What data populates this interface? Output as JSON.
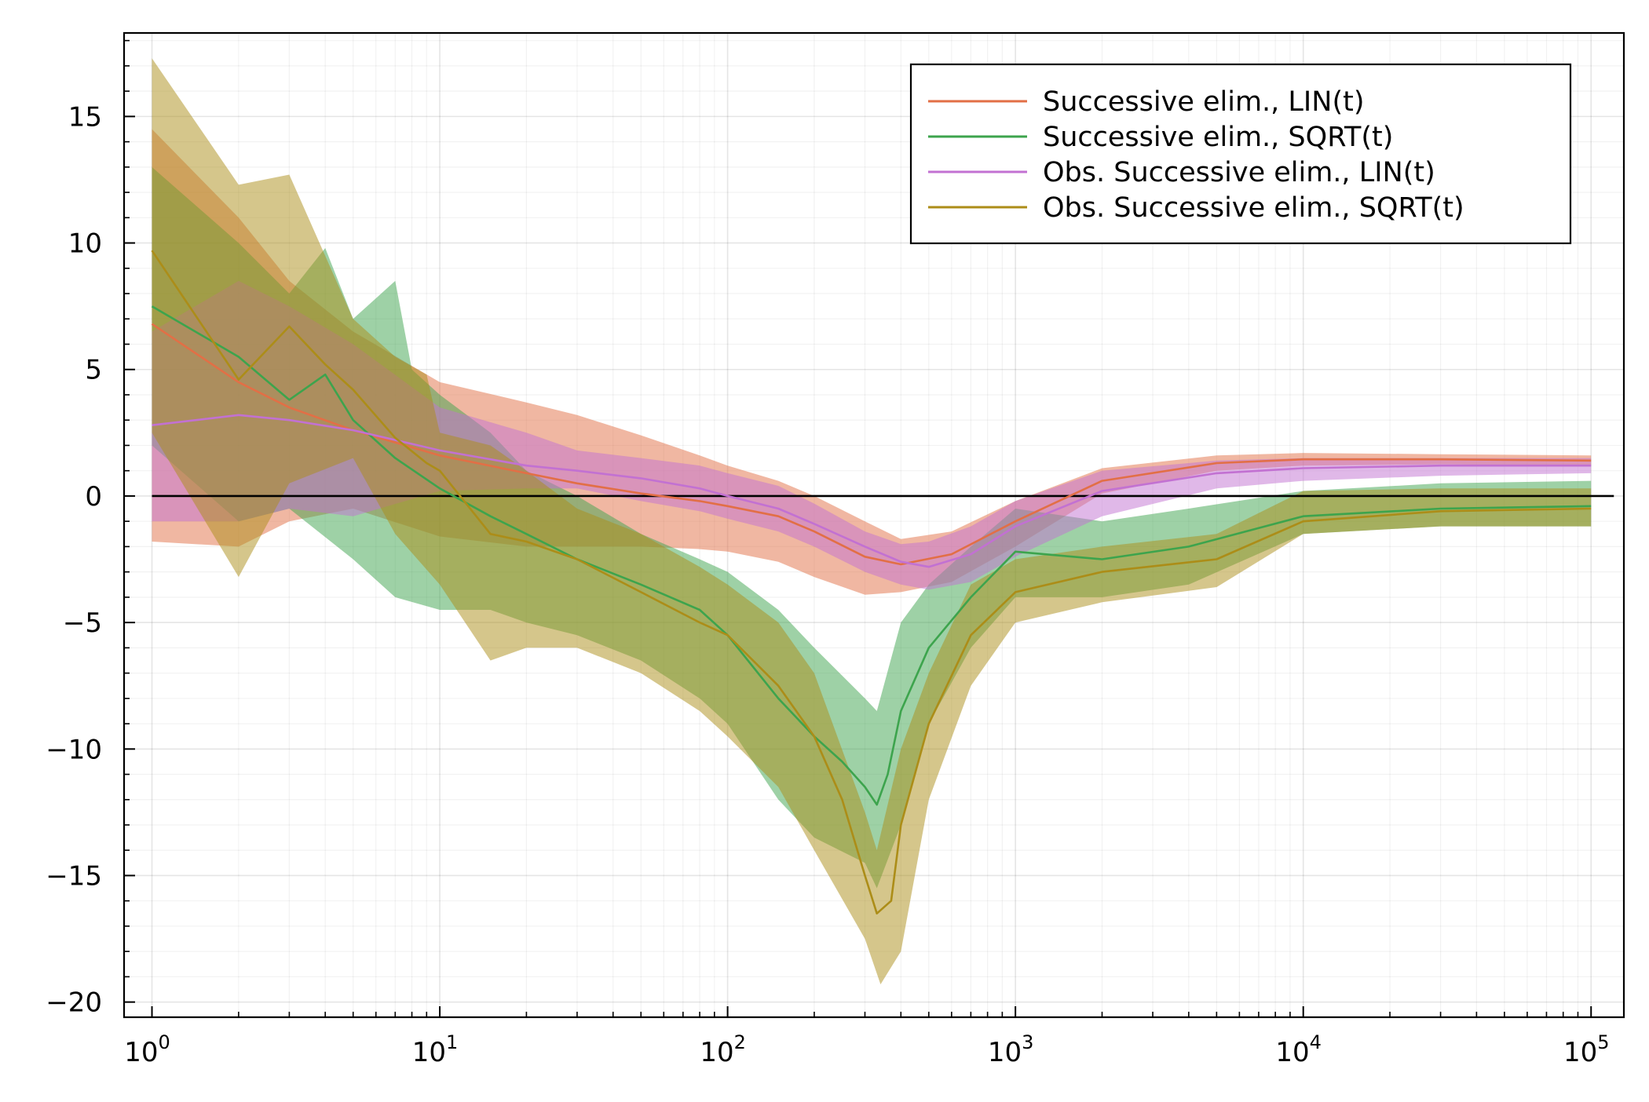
{
  "chart_data": {
    "type": "line",
    "title": "",
    "xlabel": "",
    "ylabel": "",
    "x_scale": "log10",
    "xlim": [
      0.8,
      130000
    ],
    "ylim": [
      -20.6,
      18.3
    ],
    "x_ticks": [
      {
        "value": 1,
        "base": "10",
        "exp": "0"
      },
      {
        "value": 10,
        "base": "10",
        "exp": "1"
      },
      {
        "value": 100,
        "base": "10",
        "exp": "2"
      },
      {
        "value": 1000,
        "base": "10",
        "exp": "3"
      },
      {
        "value": 10000,
        "base": "10",
        "exp": "4"
      },
      {
        "value": 100000,
        "base": "10",
        "exp": "5"
      }
    ],
    "y_ticks": [
      {
        "value": 15,
        "label": "15"
      },
      {
        "value": 10,
        "label": "10"
      },
      {
        "value": 5,
        "label": "5"
      },
      {
        "value": 0,
        "label": "0"
      },
      {
        "value": -5,
        "label": "−5"
      },
      {
        "value": -10,
        "label": "−10"
      },
      {
        "value": -15,
        "label": "−15"
      },
      {
        "value": -20,
        "label": "−20"
      }
    ],
    "grid": true,
    "legend_position": "top-right",
    "reference_line": {
      "y": 0,
      "x_range": [
        1,
        120000
      ],
      "color": "#000000"
    },
    "series": [
      {
        "name": "Successive elim., LIN(t)",
        "color": "#e26f46",
        "points": [
          [
            1,
            6.8
          ],
          [
            2,
            4.5
          ],
          [
            3,
            3.5
          ],
          [
            5,
            2.6
          ],
          [
            10,
            1.6
          ],
          [
            20,
            0.9
          ],
          [
            30,
            0.5
          ],
          [
            50,
            0.1
          ],
          [
            80,
            -0.2
          ],
          [
            100,
            -0.4
          ],
          [
            150,
            -0.8
          ],
          [
            200,
            -1.4
          ],
          [
            300,
            -2.4
          ],
          [
            400,
            -2.7
          ],
          [
            600,
            -2.3
          ],
          [
            1000,
            -1.0
          ],
          [
            2000,
            0.6
          ],
          [
            5000,
            1.3
          ],
          [
            10000,
            1.45
          ],
          [
            30000,
            1.45
          ],
          [
            100000,
            1.4
          ]
        ],
        "band_upper": [
          [
            1,
            14.5
          ],
          [
            2,
            11
          ],
          [
            3,
            8.5
          ],
          [
            5,
            6.5
          ],
          [
            10,
            4.5
          ],
          [
            20,
            3.7
          ],
          [
            30,
            3.2
          ],
          [
            50,
            2.4
          ],
          [
            80,
            1.6
          ],
          [
            100,
            1.2
          ],
          [
            150,
            0.6
          ],
          [
            200,
            0
          ],
          [
            300,
            -1.0
          ],
          [
            400,
            -1.7
          ],
          [
            600,
            -1.4
          ],
          [
            1000,
            -0.2
          ],
          [
            2000,
            1.1
          ],
          [
            5000,
            1.6
          ],
          [
            10000,
            1.7
          ],
          [
            30000,
            1.65
          ],
          [
            100000,
            1.6
          ]
        ],
        "band_lower": [
          [
            1,
            -1.8
          ],
          [
            2,
            -2
          ],
          [
            3,
            -1
          ],
          [
            5,
            -0.5
          ],
          [
            10,
            -1.6
          ],
          [
            20,
            -2.0
          ],
          [
            30,
            -2.0
          ],
          [
            50,
            -2.0
          ],
          [
            80,
            -2.1
          ],
          [
            100,
            -2.2
          ],
          [
            150,
            -2.6
          ],
          [
            200,
            -3.2
          ],
          [
            300,
            -3.9
          ],
          [
            400,
            -3.8
          ],
          [
            600,
            -3.4
          ],
          [
            1000,
            -2.0
          ],
          [
            2000,
            0.1
          ],
          [
            5000,
            1.0
          ],
          [
            10000,
            1.2
          ],
          [
            30000,
            1.25
          ],
          [
            100000,
            1.2
          ]
        ]
      },
      {
        "name": "Successive elim., SQRT(t)",
        "color": "#3da44d",
        "points": [
          [
            1,
            7.5
          ],
          [
            2,
            5.5
          ],
          [
            3,
            3.8
          ],
          [
            4,
            4.8
          ],
          [
            5,
            3.0
          ],
          [
            7,
            1.5
          ],
          [
            10,
            0.3
          ],
          [
            15,
            -0.8
          ],
          [
            20,
            -1.5
          ],
          [
            30,
            -2.5
          ],
          [
            50,
            -3.5
          ],
          [
            80,
            -4.5
          ],
          [
            100,
            -5.5
          ],
          [
            150,
            -8
          ],
          [
            200,
            -9.5
          ],
          [
            250,
            -10.5
          ],
          [
            300,
            -11.5
          ],
          [
            330,
            -12.2
          ],
          [
            360,
            -11
          ],
          [
            400,
            -8.5
          ],
          [
            500,
            -6
          ],
          [
            700,
            -4
          ],
          [
            1000,
            -2.2
          ],
          [
            2000,
            -2.5
          ],
          [
            4000,
            -2.0
          ],
          [
            10000,
            -0.8
          ],
          [
            30000,
            -0.5
          ],
          [
            100000,
            -0.4
          ]
        ],
        "band_upper": [
          [
            1,
            13
          ],
          [
            2,
            10
          ],
          [
            3,
            8
          ],
          [
            4,
            9.8
          ],
          [
            5,
            7
          ],
          [
            7,
            8.5
          ],
          [
            8,
            5
          ],
          [
            10,
            4
          ],
          [
            15,
            2.5
          ],
          [
            20,
            1.0
          ],
          [
            30,
            0
          ],
          [
            50,
            -1.5
          ],
          [
            80,
            -2.5
          ],
          [
            100,
            -3
          ],
          [
            150,
            -4.5
          ],
          [
            200,
            -6
          ],
          [
            300,
            -8
          ],
          [
            330,
            -8.5
          ],
          [
            400,
            -5
          ],
          [
            500,
            -3.5
          ],
          [
            700,
            -2
          ],
          [
            1000,
            -0.5
          ],
          [
            2000,
            -1.0
          ],
          [
            4000,
            -0.5
          ],
          [
            10000,
            0.2
          ],
          [
            30000,
            0.5
          ],
          [
            100000,
            0.6
          ]
        ],
        "band_lower": [
          [
            1,
            2
          ],
          [
            2,
            -1
          ],
          [
            3,
            -0.5
          ],
          [
            5,
            -2.5
          ],
          [
            7,
            -4.0
          ],
          [
            10,
            -4.5
          ],
          [
            15,
            -4.5
          ],
          [
            20,
            -5.0
          ],
          [
            30,
            -5.5
          ],
          [
            50,
            -6.5
          ],
          [
            80,
            -8
          ],
          [
            100,
            -9
          ],
          [
            150,
            -12
          ],
          [
            200,
            -13.5
          ],
          [
            300,
            -14.5
          ],
          [
            330,
            -15.5
          ],
          [
            400,
            -13
          ],
          [
            500,
            -9
          ],
          [
            700,
            -6
          ],
          [
            1000,
            -4.0
          ],
          [
            2000,
            -4.0
          ],
          [
            4000,
            -3.5
          ],
          [
            10000,
            -1.5
          ],
          [
            30000,
            -1.2
          ],
          [
            100000,
            -1.2
          ]
        ]
      },
      {
        "name": "Obs. Successive elim., LIN(t)",
        "color": "#c271d2",
        "points": [
          [
            1,
            2.8
          ],
          [
            2,
            3.2
          ],
          [
            3,
            3.0
          ],
          [
            5,
            2.6
          ],
          [
            10,
            1.8
          ],
          [
            20,
            1.2
          ],
          [
            30,
            1.0
          ],
          [
            50,
            0.7
          ],
          [
            80,
            0.3
          ],
          [
            100,
            0
          ],
          [
            150,
            -0.5
          ],
          [
            200,
            -1.1
          ],
          [
            300,
            -2.0
          ],
          [
            400,
            -2.6
          ],
          [
            500,
            -2.8
          ],
          [
            700,
            -2.3
          ],
          [
            1000,
            -1.2
          ],
          [
            2000,
            0.2
          ],
          [
            5000,
            0.9
          ],
          [
            10000,
            1.1
          ],
          [
            30000,
            1.2
          ],
          [
            100000,
            1.2
          ]
        ],
        "band_upper": [
          [
            1,
            6.5
          ],
          [
            2,
            8.5
          ],
          [
            3,
            7.5
          ],
          [
            5,
            6
          ],
          [
            10,
            3.5
          ],
          [
            20,
            2.5
          ],
          [
            30,
            1.8
          ],
          [
            50,
            1.5
          ],
          [
            80,
            1.2
          ],
          [
            100,
            0.9
          ],
          [
            150,
            0.4
          ],
          [
            200,
            -0.3
          ],
          [
            300,
            -1.4
          ],
          [
            400,
            -1.9
          ],
          [
            500,
            -1.8
          ],
          [
            700,
            -1.2
          ],
          [
            1000,
            -0.2
          ],
          [
            2000,
            1.0
          ],
          [
            5000,
            1.4
          ],
          [
            10000,
            1.5
          ],
          [
            30000,
            1.5
          ],
          [
            100000,
            1.5
          ]
        ],
        "band_lower": [
          [
            1,
            -1
          ],
          [
            2,
            -1
          ],
          [
            3,
            -0.5
          ],
          [
            5,
            -0.8
          ],
          [
            10,
            0.2
          ],
          [
            20,
            0.3
          ],
          [
            30,
            0.3
          ],
          [
            50,
            -0.2
          ],
          [
            80,
            -0.6
          ],
          [
            100,
            -0.9
          ],
          [
            150,
            -1.4
          ],
          [
            200,
            -2.0
          ],
          [
            300,
            -3.0
          ],
          [
            400,
            -3.5
          ],
          [
            500,
            -3.7
          ],
          [
            700,
            -3.4
          ],
          [
            1000,
            -2.4
          ],
          [
            2000,
            -0.8
          ],
          [
            5000,
            0.3
          ],
          [
            10000,
            0.6
          ],
          [
            30000,
            0.8
          ],
          [
            100000,
            0.9
          ]
        ]
      },
      {
        "name": "Obs. Successive elim., SQRT(t)",
        "color": "#ac8d18",
        "points": [
          [
            1,
            9.7
          ],
          [
            2,
            4.6
          ],
          [
            3,
            6.7
          ],
          [
            4,
            5.2
          ],
          [
            5,
            4.2
          ],
          [
            7,
            2.3
          ],
          [
            9,
            1.3
          ],
          [
            10,
            1.0
          ],
          [
            15,
            -1.5
          ],
          [
            20,
            -1.8
          ],
          [
            30,
            -2.5
          ],
          [
            50,
            -3.8
          ],
          [
            80,
            -5
          ],
          [
            100,
            -5.5
          ],
          [
            150,
            -7.5
          ],
          [
            200,
            -9.5
          ],
          [
            250,
            -12
          ],
          [
            300,
            -15
          ],
          [
            330,
            -16.5
          ],
          [
            370,
            -16
          ],
          [
            400,
            -13
          ],
          [
            500,
            -9
          ],
          [
            700,
            -5.5
          ],
          [
            1000,
            -3.8
          ],
          [
            2000,
            -3.0
          ],
          [
            5000,
            -2.5
          ],
          [
            10000,
            -1.0
          ],
          [
            30000,
            -0.6
          ],
          [
            100000,
            -0.5
          ]
        ],
        "band_upper": [
          [
            1,
            17.3
          ],
          [
            2,
            12.3
          ],
          [
            3,
            12.7
          ],
          [
            5,
            7
          ],
          [
            7,
            5.5
          ],
          [
            9,
            4.8
          ],
          [
            10,
            2.5
          ],
          [
            15,
            2.0
          ],
          [
            20,
            1.0
          ],
          [
            30,
            -0.5
          ],
          [
            50,
            -1.5
          ],
          [
            80,
            -2.8
          ],
          [
            100,
            -3.5
          ],
          [
            150,
            -5
          ],
          [
            200,
            -7
          ],
          [
            300,
            -12.5
          ],
          [
            330,
            -14
          ],
          [
            400,
            -10
          ],
          [
            500,
            -7
          ],
          [
            700,
            -3.5
          ],
          [
            1000,
            -2.5
          ],
          [
            2000,
            -2.0
          ],
          [
            5000,
            -1.5
          ],
          [
            10000,
            0.2
          ],
          [
            30000,
            0.3
          ],
          [
            100000,
            0.3
          ]
        ],
        "band_lower": [
          [
            1,
            2.5
          ],
          [
            2,
            -3.2
          ],
          [
            3,
            0.5
          ],
          [
            5,
            1.5
          ],
          [
            7,
            -1.5
          ],
          [
            10,
            -3.5
          ],
          [
            15,
            -6.5
          ],
          [
            20,
            -6
          ],
          [
            30,
            -6
          ],
          [
            50,
            -7
          ],
          [
            80,
            -8.5
          ],
          [
            100,
            -9.5
          ],
          [
            150,
            -11.5
          ],
          [
            200,
            -14
          ],
          [
            300,
            -17.5
          ],
          [
            340,
            -19.3
          ],
          [
            400,
            -18
          ],
          [
            500,
            -12
          ],
          [
            700,
            -7.5
          ],
          [
            1000,
            -5.0
          ],
          [
            2000,
            -4.2
          ],
          [
            5000,
            -3.6
          ],
          [
            10000,
            -1.5
          ],
          [
            30000,
            -1.2
          ],
          [
            100000,
            -1.2
          ]
        ]
      }
    ]
  }
}
